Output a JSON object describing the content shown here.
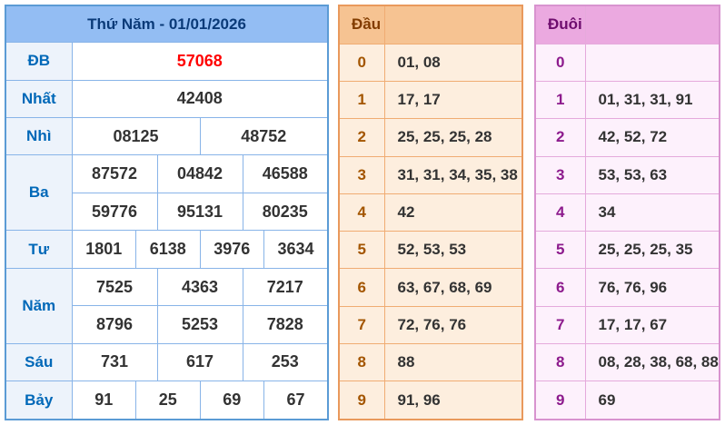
{
  "results": {
    "title": "Thứ Năm - 01/01/2026",
    "prizes": [
      {
        "label": "ĐB",
        "rows": [
          [
            "57068"
          ]
        ]
      },
      {
        "label": "Nhất",
        "rows": [
          [
            "42408"
          ]
        ]
      },
      {
        "label": "Nhì",
        "rows": [
          [
            "08125",
            "48752"
          ]
        ]
      },
      {
        "label": "Ba",
        "rows": [
          [
            "87572",
            "04842",
            "46588"
          ],
          [
            "59776",
            "95131",
            "80235"
          ]
        ]
      },
      {
        "label": "Tư",
        "rows": [
          [
            "1801",
            "6138",
            "3976",
            "3634"
          ]
        ]
      },
      {
        "label": "Năm",
        "rows": [
          [
            "7525",
            "4363",
            "7217"
          ],
          [
            "8796",
            "5253",
            "7828"
          ]
        ]
      },
      {
        "label": "Sáu",
        "rows": [
          [
            "731",
            "617",
            "253"
          ]
        ]
      },
      {
        "label": "Bảy",
        "rows": [
          [
            "91",
            "25",
            "69",
            "67"
          ]
        ]
      }
    ]
  },
  "dau": {
    "header": "Đầu",
    "rows": [
      {
        "digit": "0",
        "values": "01, 08"
      },
      {
        "digit": "1",
        "values": "17, 17"
      },
      {
        "digit": "2",
        "values": "25, 25, 25, 28"
      },
      {
        "digit": "3",
        "values": "31, 31, 34, 35, 38"
      },
      {
        "digit": "4",
        "values": "42"
      },
      {
        "digit": "5",
        "values": "52, 53, 53"
      },
      {
        "digit": "6",
        "values": "63, 67, 68, 69"
      },
      {
        "digit": "7",
        "values": "72, 76, 76"
      },
      {
        "digit": "8",
        "values": "88"
      },
      {
        "digit": "9",
        "values": "91, 96"
      }
    ]
  },
  "duoi": {
    "header": "Đuôi",
    "rows": [
      {
        "digit": "0",
        "values": ""
      },
      {
        "digit": "1",
        "values": "01, 31, 31, 91"
      },
      {
        "digit": "2",
        "values": "42, 52, 72"
      },
      {
        "digit": "3",
        "values": "53, 53, 63"
      },
      {
        "digit": "4",
        "values": "34"
      },
      {
        "digit": "5",
        "values": "25, 25, 25, 35"
      },
      {
        "digit": "6",
        "values": "76, 76, 96"
      },
      {
        "digit": "7",
        "values": "17, 17, 67"
      },
      {
        "digit": "8",
        "values": "08, 28, 38, 68, 88"
      },
      {
        "digit": "9",
        "values": "69"
      }
    ]
  },
  "colors": {
    "results_border": "#5b9bd5",
    "results_header_bg": "#93bdf3",
    "results_header_text": "#0a3a78",
    "results_label_text": "#0068b8",
    "results_special_text": "#ff0000",
    "value_text": "#333333",
    "dau_border": "#e9995c",
    "dau_header_bg": "#f6c392",
    "dau_header_text": "#823c00",
    "dau_digit_text": "#a35500",
    "dau_row_bg": "#fdeede",
    "duoi_border": "#d893cf",
    "duoi_header_bg": "#eba9e0",
    "duoi_header_text": "#6e0d6e",
    "duoi_digit_text": "#8d1b8d",
    "duoi_row_bg": "#fdf1fc"
  }
}
